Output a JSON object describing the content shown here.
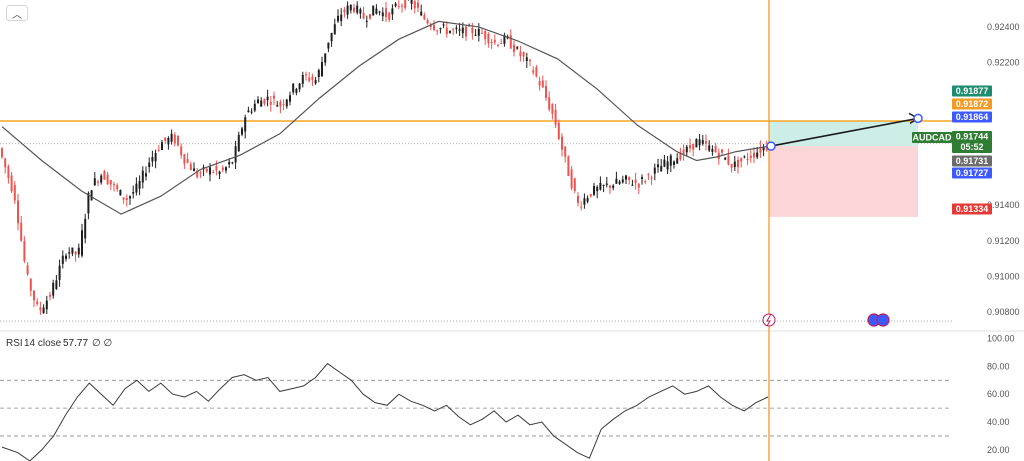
{
  "toolbar": {
    "collapse_icon": "chevron-up-icon",
    "collapse_glyph": "︿"
  },
  "colors": {
    "up": "#1f1f1f",
    "down": "#ef5350",
    "ma": "#555555",
    "hline": "#f5a623",
    "vline": "#f59a23",
    "profit_zone": "#cdeee6",
    "loss_zone": "#fbd5d8",
    "arrow": "#1a1a1a",
    "rsi_line": "#3a3a3a",
    "tag_green": "#1e8c6e",
    "tag_orange": "#f59a23",
    "tag_blue": "#3d5afe",
    "tag_darkgreen": "#2e7d32",
    "tag_gray": "#6b6b6b",
    "tag_red": "#e53935"
  },
  "chart_data": [
    {
      "type": "candlestick",
      "symbol": "AUDCAD",
      "y_axis": {
        "ticks": [
          "0.92400",
          "0.92200",
          "0.91400",
          "0.91200",
          "0.91000",
          "0.90800"
        ],
        "tick_values": [
          0.924,
          0.922,
          0.914,
          0.912,
          0.91,
          0.908
        ],
        "range": [
          0.907,
          0.9255
        ]
      },
      "price_tags": [
        {
          "label": "0.91877",
          "value": 0.91877,
          "color": "tag_green"
        },
        {
          "label": "0.91872",
          "value": 0.91872,
          "color": "tag_orange"
        },
        {
          "label": "0.91864",
          "value": 0.91864,
          "color": "tag_blue"
        },
        {
          "label": "0.91744",
          "value": 0.91744,
          "color": "tag_darkgreen",
          "extra": "05:52"
        },
        {
          "label": "0.91731",
          "value": 0.91731,
          "color": "tag_gray"
        },
        {
          "label": "0.91727",
          "value": 0.91727,
          "color": "tag_blue"
        },
        {
          "label": "0.91334",
          "value": 0.91334,
          "color": "tag_red"
        }
      ],
      "symbol_tag": "AUDCAD",
      "horizontal_line": 0.91872,
      "dotted_lines": [
        0.91744,
        0.9075
      ],
      "position": {
        "entry": 0.91731,
        "target": 0.91864,
        "stop": 0.91334,
        "profit_top": 0.91872
      },
      "path_points": [
        [
          0,
          0.9172
        ],
        [
          8,
          0.9145
        ],
        [
          14,
          0.91
        ],
        [
          20,
          0.908
        ],
        [
          26,
          0.909
        ],
        [
          34,
          0.9115
        ],
        [
          40,
          0.9112
        ],
        [
          46,
          0.915
        ],
        [
          52,
          0.9158
        ],
        [
          58,
          0.915
        ],
        [
          64,
          0.9143
        ],
        [
          70,
          0.915
        ],
        [
          76,
          0.9165
        ],
        [
          82,
          0.9175
        ],
        [
          88,
          0.9178
        ],
        [
          94,
          0.9165
        ],
        [
          100,
          0.9157
        ],
        [
          106,
          0.916
        ],
        [
          112,
          0.9158
        ],
        [
          118,
          0.9165
        ],
        [
          124,
          0.919
        ],
        [
          130,
          0.9198
        ],
        [
          136,
          0.92
        ],
        [
          142,
          0.9196
        ],
        [
          148,
          0.9205
        ],
        [
          154,
          0.9212
        ],
        [
          160,
          0.921
        ],
        [
          166,
          0.9232
        ],
        [
          172,
          0.9247
        ],
        [
          178,
          0.9252
        ],
        [
          184,
          0.9245
        ],
        [
          190,
          0.925
        ],
        [
          196,
          0.9246
        ],
        [
          202,
          0.9253
        ],
        [
          208,
          0.9254
        ],
        [
          214,
          0.9245
        ],
        [
          220,
          0.924
        ],
        [
          226,
          0.9238
        ],
        [
          232,
          0.9237
        ],
        [
          238,
          0.9238
        ],
        [
          244,
          0.9236
        ],
        [
          250,
          0.9231
        ],
        [
          256,
          0.9233
        ],
        [
          262,
          0.9225
        ],
        [
          268,
          0.9218
        ],
        [
          274,
          0.9205
        ],
        [
          280,
          0.9188
        ],
        [
          286,
          0.9162
        ],
        [
          292,
          0.914
        ],
        [
          298,
          0.9147
        ],
        [
          304,
          0.915
        ],
        [
          310,
          0.9152
        ],
        [
          316,
          0.9154
        ],
        [
          322,
          0.9152
        ],
        [
          328,
          0.9157
        ],
        [
          334,
          0.9162
        ],
        [
          340,
          0.9166
        ],
        [
          346,
          0.917
        ],
        [
          352,
          0.9176
        ],
        [
          358,
          0.9172
        ],
        [
          364,
          0.9168
        ],
        [
          370,
          0.9162
        ],
        [
          376,
          0.9166
        ],
        [
          382,
          0.917
        ],
        [
          386,
          0.9173
        ]
      ],
      "candle_x_range": [
        0,
        386
      ],
      "future_x": 460,
      "ma_points": [
        [
          0,
          0.9184
        ],
        [
          20,
          0.9165
        ],
        [
          40,
          0.9148
        ],
        [
          60,
          0.9135
        ],
        [
          80,
          0.9145
        ],
        [
          100,
          0.916
        ],
        [
          120,
          0.9168
        ],
        [
          140,
          0.918
        ],
        [
          160,
          0.92
        ],
        [
          180,
          0.9218
        ],
        [
          200,
          0.9233
        ],
        [
          220,
          0.9243
        ],
        [
          240,
          0.924
        ],
        [
          260,
          0.9232
        ],
        [
          280,
          0.9222
        ],
        [
          300,
          0.9205
        ],
        [
          320,
          0.9185
        ],
        [
          340,
          0.917
        ],
        [
          350,
          0.9165
        ],
        [
          360,
          0.9167
        ],
        [
          370,
          0.917
        ],
        [
          386,
          0.9173
        ]
      ]
    },
    {
      "type": "line",
      "indicator": "RSI",
      "label": "RSI",
      "params": "14 close",
      "value_text": "57.77",
      "extra_text": "∅  ∅",
      "y_axis": {
        "ticks": [
          "100.00",
          "80.00",
          "60.00",
          "40.00",
          "20.00"
        ],
        "tick_values": [
          100,
          80,
          60,
          40,
          20
        ],
        "range": [
          12,
          104
        ]
      },
      "bands": [
        70,
        50,
        30
      ],
      "series": [
        [
          0,
          22
        ],
        [
          8,
          18
        ],
        [
          14,
          12
        ],
        [
          20,
          20
        ],
        [
          26,
          30
        ],
        [
          32,
          45
        ],
        [
          38,
          58
        ],
        [
          44,
          68
        ],
        [
          50,
          60
        ],
        [
          56,
          52
        ],
        [
          62,
          64
        ],
        [
          68,
          70
        ],
        [
          74,
          62
        ],
        [
          80,
          68
        ],
        [
          86,
          60
        ],
        [
          92,
          58
        ],
        [
          98,
          62
        ],
        [
          104,
          55
        ],
        [
          110,
          64
        ],
        [
          116,
          72
        ],
        [
          122,
          74
        ],
        [
          128,
          70
        ],
        [
          134,
          72
        ],
        [
          140,
          62
        ],
        [
          146,
          64
        ],
        [
          152,
          66
        ],
        [
          158,
          72
        ],
        [
          164,
          82
        ],
        [
          170,
          76
        ],
        [
          176,
          70
        ],
        [
          182,
          60
        ],
        [
          188,
          54
        ],
        [
          194,
          52
        ],
        [
          200,
          60
        ],
        [
          206,
          55
        ],
        [
          212,
          52
        ],
        [
          218,
          48
        ],
        [
          224,
          52
        ],
        [
          230,
          44
        ],
        [
          236,
          38
        ],
        [
          242,
          42
        ],
        [
          248,
          48
        ],
        [
          254,
          40
        ],
        [
          260,
          45
        ],
        [
          266,
          38
        ],
        [
          272,
          40
        ],
        [
          278,
          30
        ],
        [
          284,
          24
        ],
        [
          290,
          18
        ],
        [
          296,
          14
        ],
        [
          302,
          35
        ],
        [
          308,
          42
        ],
        [
          314,
          48
        ],
        [
          320,
          52
        ],
        [
          326,
          58
        ],
        [
          332,
          62
        ],
        [
          338,
          66
        ],
        [
          344,
          60
        ],
        [
          350,
          62
        ],
        [
          356,
          66
        ],
        [
          362,
          58
        ],
        [
          368,
          52
        ],
        [
          374,
          48
        ],
        [
          380,
          54
        ],
        [
          386,
          58
        ]
      ]
    }
  ]
}
